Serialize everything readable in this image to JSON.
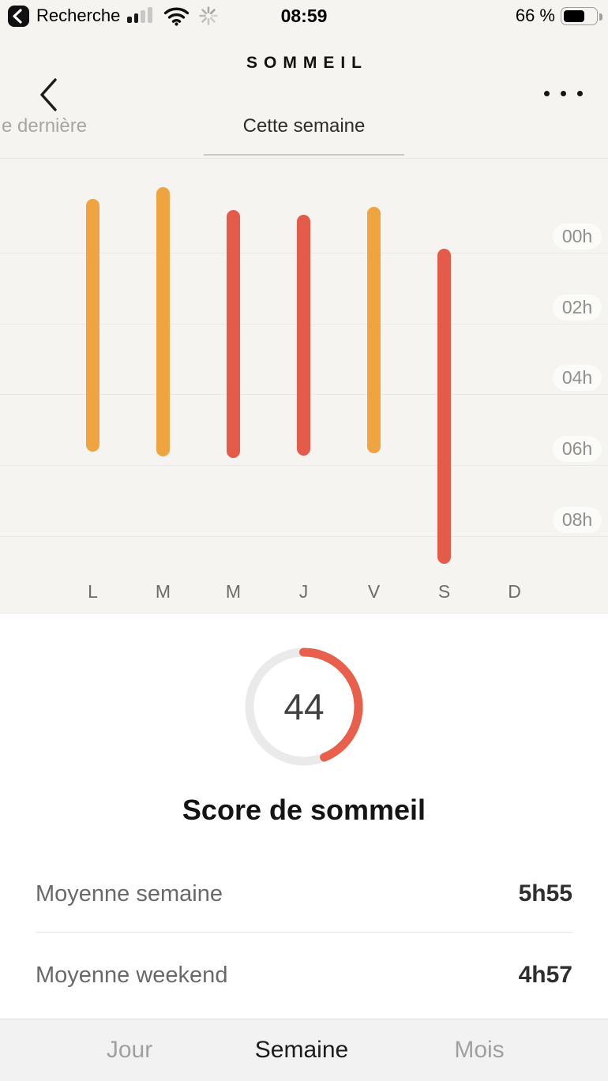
{
  "status_bar": {
    "back_app_label": "Recherche",
    "time": "08:59",
    "battery_label": "66 %",
    "battery_percent": 66,
    "signal_bars_filled": 2,
    "signal_bars_total": 4
  },
  "header": {
    "title": "SOMMEIL"
  },
  "period_tabs": {
    "previous_partial": "e dernière",
    "current": "Cette semaine"
  },
  "chart_data": {
    "type": "bar",
    "subtype": "vertical-time-range",
    "title": "Cette semaine",
    "day_labels": [
      "L",
      "M",
      "M",
      "J",
      "V",
      "S",
      "D"
    ],
    "y_axis": {
      "tick_labels": [
        "00h",
        "02h",
        "04h",
        "06h",
        "08h"
      ],
      "tick_hours": [
        0,
        2,
        4,
        6,
        8
      ],
      "unit": "hour-of-night"
    },
    "bars": [
      {
        "day_index": 0,
        "day": "L",
        "start_hour": -1.52,
        "end_hour": 5.62,
        "color": "#EFA440"
      },
      {
        "day_index": 1,
        "day": "M",
        "start_hour": -1.85,
        "end_hour": 5.76,
        "color": "#EFA440"
      },
      {
        "day_index": 2,
        "day": "M",
        "start_hour": -1.2,
        "end_hour": 5.8,
        "color": "#E55B49"
      },
      {
        "day_index": 3,
        "day": "J",
        "start_hour": -1.07,
        "end_hour": 5.73,
        "color": "#E55B49"
      },
      {
        "day_index": 4,
        "day": "V",
        "start_hour": -1.29,
        "end_hour": 5.67,
        "color": "#EFA440"
      },
      {
        "day_index": 5,
        "day": "S",
        "start_hour": -0.11,
        "end_hour": 8.79,
        "color": "#E55B49"
      }
    ],
    "palette": {
      "orange": "#EFA440",
      "red": "#E55B49"
    }
  },
  "score": {
    "value": "44",
    "percent": 44,
    "label": "Score de sommeil",
    "arc_color": "#E8604C",
    "ring_color": "#EAEAEA"
  },
  "stats": [
    {
      "label": "Moyenne semaine",
      "value": "5h55"
    },
    {
      "label": "Moyenne weekend",
      "value": "4h57"
    }
  ],
  "bottom_tabs": {
    "items": [
      {
        "label": "Jour",
        "active": false
      },
      {
        "label": "Semaine",
        "active": true
      },
      {
        "label": "Mois",
        "active": false
      }
    ]
  }
}
